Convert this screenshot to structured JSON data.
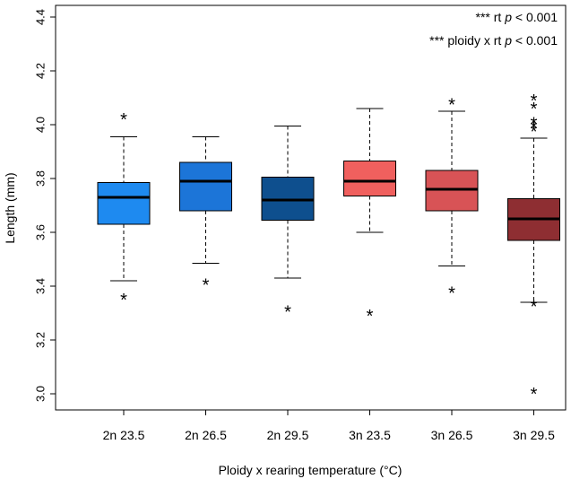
{
  "chart_data": {
    "type": "boxplot",
    "xlabel": "Ploidy x rearing temperature (°C)",
    "ylabel": "Length (mm)",
    "ylim": [
      2.95,
      4.45
    ],
    "yticks": [
      3.0,
      3.2,
      3.4,
      3.6,
      3.8,
      4.0,
      4.2,
      4.4
    ],
    "ytick_labels": [
      "3.0",
      "3.2",
      "3.4",
      "3.6",
      "3.8",
      "4.0",
      "4.2",
      "4.4"
    ],
    "grid": false,
    "annotations": [
      {
        "stars": "***",
        "term": "rt",
        "p": "p < 0.001"
      },
      {
        "stars": "***",
        "term": "ploidy x rt",
        "p": "p < 0.001"
      }
    ],
    "boxes": [
      {
        "label": "2n 23.5",
        "color": "#1e8af0",
        "whisker_low": 3.42,
        "q1": 3.63,
        "median": 3.73,
        "q3": 3.785,
        "whisker_high": 3.955,
        "outliers": [
          4.02,
          3.35
        ]
      },
      {
        "label": "2n 26.5",
        "color": "#1c75d8",
        "whisker_low": 3.485,
        "q1": 3.68,
        "median": 3.79,
        "q3": 3.86,
        "whisker_high": 3.955,
        "outliers": [
          3.405
        ]
      },
      {
        "label": "2n 29.5",
        "color": "#0e4f8e",
        "whisker_low": 3.43,
        "q1": 3.645,
        "median": 3.72,
        "q3": 3.805,
        "whisker_high": 3.995,
        "outliers": [
          3.305
        ]
      },
      {
        "label": "3n 23.5",
        "color": "#f0605e",
        "whisker_low": 3.6,
        "q1": 3.735,
        "median": 3.79,
        "q3": 3.865,
        "whisker_high": 4.06,
        "outliers": [
          3.29
        ]
      },
      {
        "label": "3n 26.5",
        "color": "#d85356",
        "whisker_low": 3.475,
        "q1": 3.68,
        "median": 3.76,
        "q3": 3.83,
        "whisker_high": 4.05,
        "outliers": [
          4.075,
          3.375
        ]
      },
      {
        "label": "3n 29.5",
        "color": "#8e2e32",
        "whisker_low": 3.34,
        "q1": 3.57,
        "median": 3.65,
        "q3": 3.725,
        "whisker_high": 3.95,
        "outliers": [
          4.09,
          4.06,
          4.005,
          3.99,
          3.975,
          3.325,
          3.0
        ]
      }
    ]
  }
}
